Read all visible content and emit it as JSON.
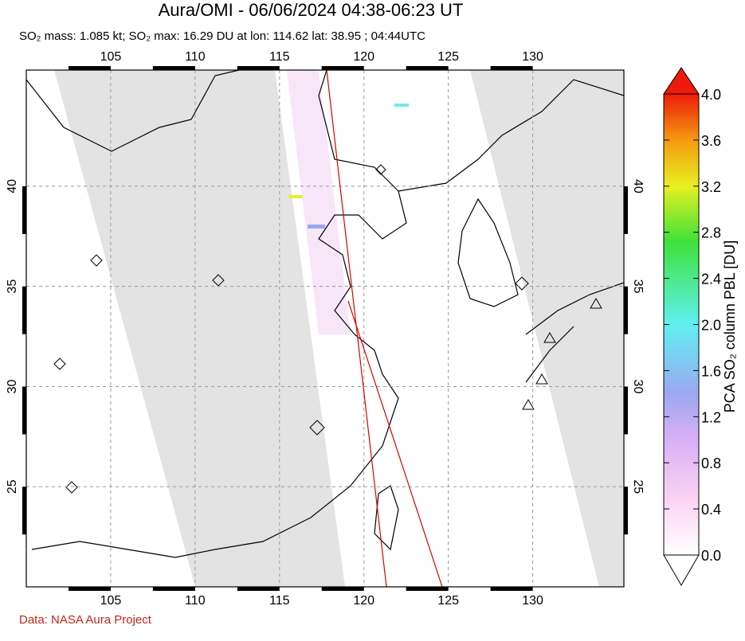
{
  "title": "Aura/OMI - 06/06/2024 04:38-06:23 UT",
  "subtitle": "SO₂ mass: 1.085 kt; SO₂ max: 16.29 DU at lon: 114.62 lat: 38.95 ; 04:44UTC",
  "map": {
    "lonlim": [
      100,
      135.4
    ],
    "latlim": [
      20,
      45.8
    ],
    "lonticks": [
      105,
      110,
      115,
      120,
      125,
      130
    ],
    "latticks": [
      25,
      30,
      35,
      40
    ]
  },
  "colorbar": {
    "label": "PCA SO₂ column PBL [DU]",
    "lim": [
      0,
      4
    ],
    "ticks": [
      {
        "value": 0,
        "label": "0.0"
      },
      {
        "value": 0.4,
        "label": "0.4"
      },
      {
        "value": 0.8,
        "label": "0.8"
      },
      {
        "value": 1.2,
        "label": "1.2"
      },
      {
        "value": 1.6,
        "label": "1.6"
      },
      {
        "value": 2.0,
        "label": "2.0"
      },
      {
        "value": 2.4,
        "label": "2.4"
      },
      {
        "value": 2.8,
        "label": "2.8"
      },
      {
        "value": 3.2,
        "label": "3.2"
      },
      {
        "value": 3.6,
        "label": "3.6"
      },
      {
        "value": 4.0,
        "label": "4.0"
      }
    ]
  },
  "credit": "Data: NASA Aura Project"
}
